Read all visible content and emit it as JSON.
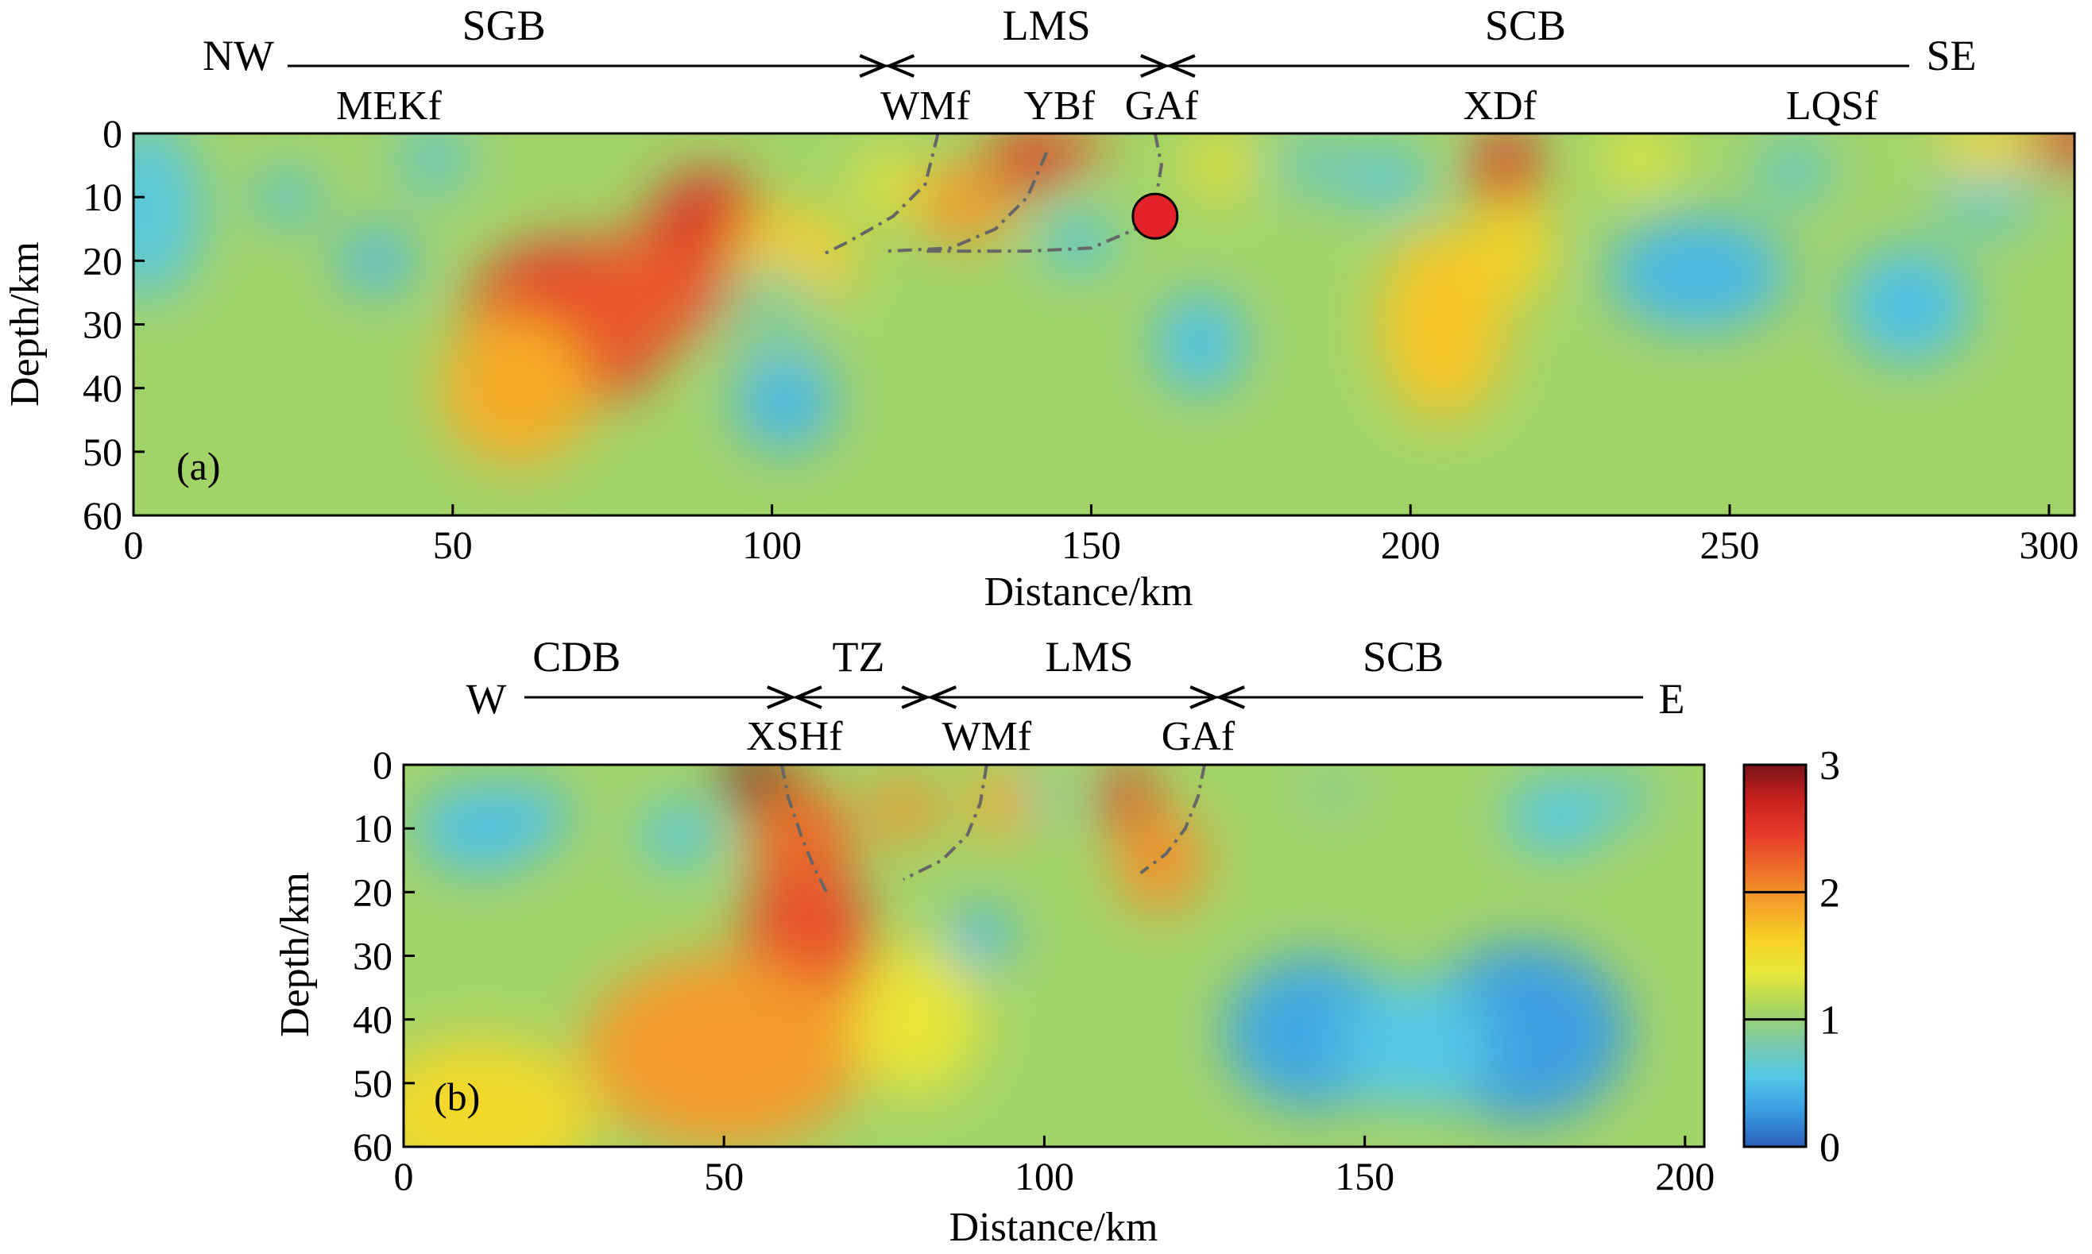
{
  "chart_data": [
    {
      "type": "heatmap",
      "panel_label": "(a)",
      "xlabel": "Distance/km",
      "ylabel": "Depth/km",
      "xlim": [
        0,
        304
      ],
      "ylim": [
        60,
        0
      ],
      "xticks": [
        "0",
        "50",
        "100",
        "150",
        "200",
        "250",
        "300"
      ],
      "yticks": [
        "0",
        "10",
        "20",
        "30",
        "40",
        "50",
        "60"
      ],
      "direction_left": "NW",
      "direction_right": "SE",
      "blocks": [
        {
          "name": "SGB",
          "x": 58
        },
        {
          "name": "LMS",
          "x": 143
        },
        {
          "name": "SCB",
          "x": 218
        }
      ],
      "block_boundaries": [
        118,
        162
      ],
      "faults": [
        {
          "name": "MEKf",
          "x": 40
        },
        {
          "name": "WMf",
          "x": 124
        },
        {
          "name": "YBf",
          "x": 145
        },
        {
          "name": "GAf",
          "x": 161
        },
        {
          "name": "XDf",
          "x": 214
        },
        {
          "name": "LQSf",
          "x": 266
        }
      ],
      "event_marker": {
        "x": 160,
        "depth": 13
      },
      "fault_traces": [
        [
          [
            126,
            0
          ],
          [
            124,
            8
          ],
          [
            119,
            13
          ],
          [
            112,
            17
          ],
          [
            108,
            19
          ]
        ],
        [
          [
            143,
            3
          ],
          [
            140,
            10
          ],
          [
            135,
            15
          ],
          [
            128,
            18
          ],
          [
            118,
            18.5
          ]
        ],
        [
          [
            160,
            0
          ],
          [
            161,
            5
          ],
          [
            160,
            11
          ],
          [
            157,
            15
          ],
          [
            150,
            18
          ],
          [
            140,
            18.5
          ],
          [
            124,
            18.5
          ]
        ]
      ],
      "anomalies": [
        {
          "x": 2,
          "depth": 12,
          "value": 0.6,
          "rx": 9,
          "ry": 14
        },
        {
          "x": 24,
          "depth": 10,
          "value": 0.5,
          "rx": 5,
          "ry": 4
        },
        {
          "x": 38,
          "depth": 20,
          "value": 0.45,
          "rx": 6,
          "ry": 5
        },
        {
          "x": 47,
          "depth": 4,
          "value": 0.7,
          "rx": 6,
          "ry": 6
        },
        {
          "x": 68,
          "depth": 30,
          "value": 2.45,
          "rx": 16,
          "ry": 13
        },
        {
          "x": 60,
          "depth": 40,
          "value": 1.85,
          "rx": 12,
          "ry": 12
        },
        {
          "x": 90,
          "depth": 18,
          "value": 2.55,
          "rx": 10,
          "ry": 12
        },
        {
          "x": 80,
          "depth": 25,
          "value": 2.3,
          "rx": 10,
          "ry": 10
        },
        {
          "x": 103,
          "depth": 20,
          "value": 1.65,
          "rx": 10,
          "ry": 8
        },
        {
          "x": 102,
          "depth": 42,
          "value": 0.45,
          "rx": 8,
          "ry": 8
        },
        {
          "x": 100,
          "depth": 28,
          "value": 0.9,
          "rx": 8,
          "ry": 8
        },
        {
          "x": 130,
          "depth": 11,
          "value": 1.95,
          "rx": 8,
          "ry": 6
        },
        {
          "x": 140,
          "depth": 4,
          "value": 2.55,
          "rx": 6,
          "ry": 5
        },
        {
          "x": 147,
          "depth": 2,
          "value": 2.35,
          "rx": 5,
          "ry": 3
        },
        {
          "x": 118,
          "depth": 8,
          "value": 1.4,
          "rx": 5,
          "ry": 5
        },
        {
          "x": 148,
          "depth": 17,
          "value": 0.6,
          "rx": 6,
          "ry": 5
        },
        {
          "x": 167,
          "depth": 33,
          "value": 0.5,
          "rx": 7,
          "ry": 8
        },
        {
          "x": 184,
          "depth": 5,
          "value": 0.7,
          "rx": 5,
          "ry": 5
        },
        {
          "x": 196,
          "depth": 7,
          "value": 0.6,
          "rx": 7,
          "ry": 5
        },
        {
          "x": 205,
          "depth": 30,
          "value": 1.7,
          "rx": 10,
          "ry": 15
        },
        {
          "x": 215,
          "depth": 6,
          "value": 2.55,
          "rx": 5,
          "ry": 7
        },
        {
          "x": 216,
          "depth": 18,
          "value": 1.6,
          "rx": 6,
          "ry": 8
        },
        {
          "x": 245,
          "depth": 22,
          "value": 0.45,
          "rx": 14,
          "ry": 9
        },
        {
          "x": 260,
          "depth": 6,
          "value": 0.65,
          "rx": 6,
          "ry": 5
        },
        {
          "x": 278,
          "depth": 27,
          "value": 0.5,
          "rx": 10,
          "ry": 9
        },
        {
          "x": 290,
          "depth": 10,
          "value": 0.7,
          "rx": 8,
          "ry": 6
        },
        {
          "x": 303,
          "depth": 1,
          "value": 2.5,
          "rx": 7,
          "ry": 4
        },
        {
          "x": 290,
          "depth": 2,
          "value": 1.55,
          "rx": 7,
          "ry": 5
        },
        {
          "x": 236,
          "depth": 4,
          "value": 1.35,
          "rx": 6,
          "ry": 5
        },
        {
          "x": 170,
          "depth": 5,
          "value": 1.45,
          "rx": 5,
          "ry": 5
        }
      ]
    },
    {
      "type": "heatmap",
      "panel_label": "(b)",
      "xlabel": "Distance/km",
      "ylabel": "Depth/km",
      "xlim": [
        0,
        203
      ],
      "ylim": [
        60,
        0
      ],
      "xticks": [
        "0",
        "50",
        "100",
        "150",
        "200"
      ],
      "yticks": [
        "0",
        "10",
        "20",
        "30",
        "40",
        "50",
        "60"
      ],
      "direction_left": "W",
      "direction_right": "E",
      "blocks": [
        {
          "name": "CDB",
          "x": 27
        },
        {
          "name": "TZ",
          "x": 71
        },
        {
          "name": "LMS",
          "x": 107
        },
        {
          "name": "SCB",
          "x": 156
        }
      ],
      "block_boundaries": [
        61,
        82,
        127
      ],
      "faults": [
        {
          "name": "XSHf",
          "x": 61
        },
        {
          "name": "WMf",
          "x": 91
        },
        {
          "name": "GAf",
          "x": 124
        }
      ],
      "fault_traces": [
        [
          [
            59,
            0
          ],
          [
            60,
            5
          ],
          [
            62,
            11
          ],
          [
            64,
            16
          ],
          [
            66,
            20
          ]
        ],
        [
          [
            91,
            0
          ],
          [
            90,
            6
          ],
          [
            88,
            11
          ],
          [
            84,
            15
          ],
          [
            78,
            18
          ]
        ],
        [
          [
            125,
            0
          ],
          [
            124,
            5
          ],
          [
            122,
            10
          ],
          [
            119,
            14
          ],
          [
            115,
            17
          ]
        ]
      ],
      "anomalies": [
        {
          "x": 12,
          "depth": 10,
          "value": 0.5,
          "rx": 10,
          "ry": 7
        },
        {
          "x": 20,
          "depth": 8,
          "value": 0.5,
          "rx": 6,
          "ry": 5
        },
        {
          "x": 43,
          "depth": 11,
          "value": 0.55,
          "rx": 6,
          "ry": 5
        },
        {
          "x": 55,
          "depth": 2,
          "value": 3.0,
          "rx": 6,
          "ry": 4
        },
        {
          "x": 62,
          "depth": 12,
          "value": 2.2,
          "rx": 8,
          "ry": 9
        },
        {
          "x": 63,
          "depth": 28,
          "value": 2.35,
          "rx": 10,
          "ry": 13
        },
        {
          "x": 50,
          "depth": 45,
          "value": 1.95,
          "rx": 22,
          "ry": 15
        },
        {
          "x": 12,
          "depth": 55,
          "value": 1.55,
          "rx": 18,
          "ry": 12
        },
        {
          "x": 78,
          "depth": 7,
          "value": 2.0,
          "rx": 5,
          "ry": 5
        },
        {
          "x": 93,
          "depth": 6,
          "value": 1.9,
          "rx": 5,
          "ry": 5
        },
        {
          "x": 80,
          "depth": 40,
          "value": 1.4,
          "rx": 10,
          "ry": 12
        },
        {
          "x": 90,
          "depth": 27,
          "value": 0.45,
          "rx": 5,
          "ry": 5
        },
        {
          "x": 113,
          "depth": 5,
          "value": 2.6,
          "rx": 4,
          "ry": 5
        },
        {
          "x": 118,
          "depth": 15,
          "value": 2.0,
          "rx": 7,
          "ry": 8
        },
        {
          "x": 142,
          "depth": 42,
          "value": 0.35,
          "rx": 14,
          "ry": 12
        },
        {
          "x": 175,
          "depth": 42,
          "value": 0.3,
          "rx": 16,
          "ry": 14
        },
        {
          "x": 158,
          "depth": 44,
          "value": 0.55,
          "rx": 12,
          "ry": 10
        },
        {
          "x": 180,
          "depth": 8,
          "value": 0.55,
          "rx": 8,
          "ry": 6
        },
        {
          "x": 190,
          "depth": 5,
          "value": 0.65,
          "rx": 5,
          "ry": 4
        },
        {
          "x": 101,
          "depth": 5,
          "value": 0.7,
          "rx": 3,
          "ry": 3
        },
        {
          "x": 145,
          "depth": 4,
          "value": 0.8,
          "rx": 4,
          "ry": 3
        }
      ]
    }
  ],
  "colorbar": {
    "min": 0,
    "max": 3,
    "ticks": [
      "0",
      "1",
      "2",
      "3"
    ],
    "colors": [
      "#2a5eb8",
      "#3a9be0",
      "#52c7e6",
      "#7ac9a8",
      "#a9d55e",
      "#e6e83a",
      "#f7d023",
      "#f4a22a",
      "#ee6e28",
      "#e53b2a",
      "#c9201f",
      "#7a1418"
    ]
  }
}
